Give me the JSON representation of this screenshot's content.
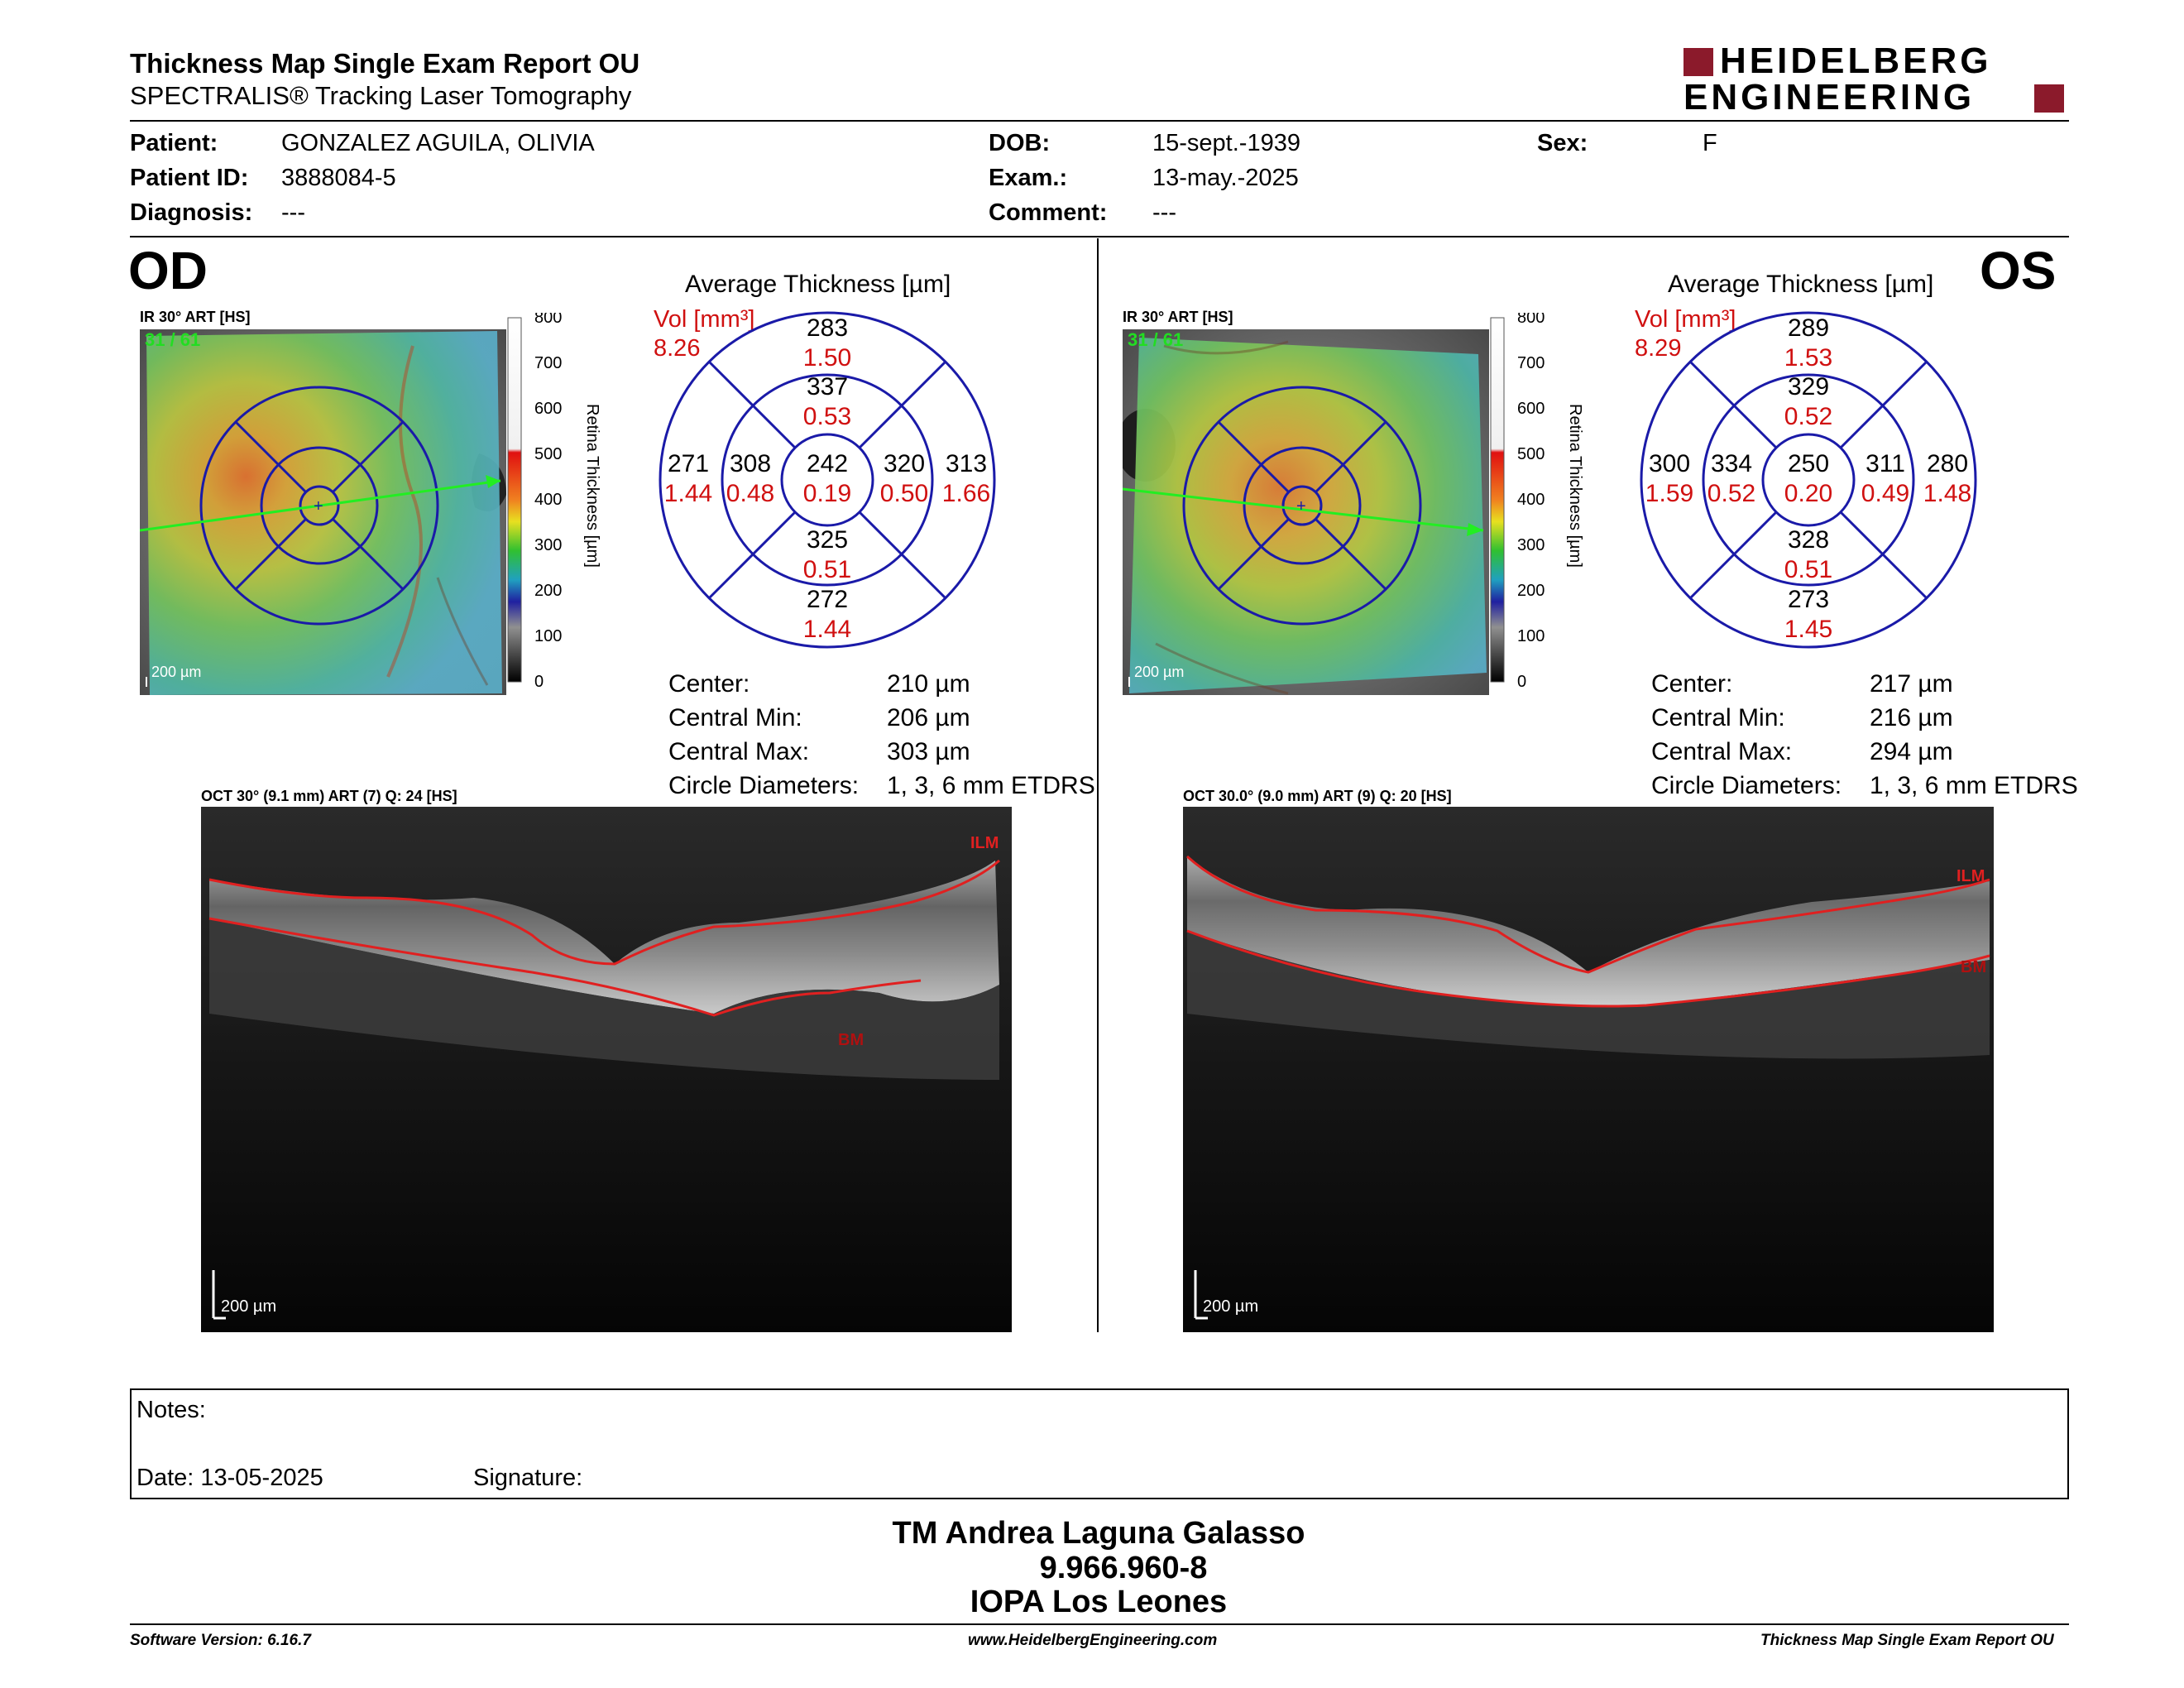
{
  "header": {
    "title": "Thickness Map Single Exam Report OU",
    "subtitle": "SPECTRALIS® Tracking Laser Tomography",
    "logo_line1": "HEIDELBERG",
    "logo_line2": "ENGINEERING"
  },
  "patient": {
    "patient_label": "Patient:",
    "patient_value": "GONZALEZ AGUILA, OLIVIA",
    "id_label": "Patient ID:",
    "id_value": "3888084-5",
    "diagnosis_label": "Diagnosis:",
    "diagnosis_value": "---",
    "dob_label": "DOB:",
    "dob_value": "15-sept.-1939",
    "exam_label": "Exam.:",
    "exam_value": "13-may.-2025",
    "comment_label": "Comment:",
    "comment_value": "---",
    "sex_label": "Sex:",
    "sex_value": "F"
  },
  "od": {
    "eye": "OD",
    "ir_label": "IR 30° ART [HS]",
    "frames": "31 / 61",
    "scale": "200 µm",
    "colorbar_ticks": [
      "800",
      "700",
      "600",
      "500",
      "400",
      "300",
      "200",
      "100",
      "0"
    ],
    "colorbar_label": "Retina Thickness [µm]",
    "avg_title": "Average Thickness [µm]",
    "vol_label": "Vol [mm³]",
    "vol_value": "8.26",
    "sectors": {
      "outer_sup": [
        "283",
        "1.50"
      ],
      "inner_sup": [
        "337",
        "0.53"
      ],
      "outer_temp": [
        "271",
        "1.44"
      ],
      "inner_temp": [
        "308",
        "0.48"
      ],
      "center": [
        "242",
        "0.19"
      ],
      "inner_nas": [
        "320",
        "0.50"
      ],
      "outer_nas": [
        "313",
        "1.66"
      ],
      "inner_inf": [
        "325",
        "0.51"
      ],
      "outer_inf": [
        "272",
        "1.44"
      ]
    },
    "stats": [
      {
        "label": "Center:",
        "value": "210 µm"
      },
      {
        "label": "Central Min:",
        "value": "206 µm"
      },
      {
        "label": "Central Max:",
        "value": "303 µm"
      },
      {
        "label": "Circle Diameters:",
        "value": "1, 3, 6 mm ETDRS"
      }
    ],
    "oct_label": "OCT 30° (9.1 mm) ART (7) Q: 24 [HS]",
    "ilm": "ILM",
    "bm": "BM",
    "oct_scale": "200 µm"
  },
  "os": {
    "eye": "OS",
    "ir_label": "IR 30° ART [HS]",
    "frames": "31 / 61",
    "scale": "200 µm",
    "colorbar_ticks": [
      "800",
      "700",
      "600",
      "500",
      "400",
      "300",
      "200",
      "100",
      "0"
    ],
    "colorbar_label": "Retina Thickness [µm]",
    "avg_title": "Average Thickness [µm]",
    "vol_label": "Vol [mm³]",
    "vol_value": "8.29",
    "sectors": {
      "outer_sup": [
        "289",
        "1.53"
      ],
      "inner_sup": [
        "329",
        "0.52"
      ],
      "outer_temp": [
        "300",
        "1.59"
      ],
      "inner_temp": [
        "334",
        "0.52"
      ],
      "center": [
        "250",
        "0.20"
      ],
      "inner_nas": [
        "311",
        "0.49"
      ],
      "outer_nas": [
        "280",
        "1.48"
      ],
      "inner_inf": [
        "328",
        "0.51"
      ],
      "outer_inf": [
        "273",
        "1.45"
      ]
    },
    "stats": [
      {
        "label": "Center:",
        "value": "217 µm"
      },
      {
        "label": "Central Min:",
        "value": "216 µm"
      },
      {
        "label": "Central Max:",
        "value": "294 µm"
      },
      {
        "label": "Circle Diameters:",
        "value": "1, 3, 6 mm ETDRS"
      }
    ],
    "oct_label": "OCT 30.0° (9.0 mm) ART (9) Q: 20 [HS]",
    "ilm": "ILM",
    "bm": "BM",
    "oct_scale": "200 µm"
  },
  "notes": {
    "notes_label": "Notes:",
    "date_label": "Date: 13-05-2025",
    "signature_label": "Signature:"
  },
  "signatory": {
    "name": "TM Andrea Laguna Galasso",
    "rut": "9.966.960-8",
    "institution": "IOPA Los Leones"
  },
  "footer": {
    "version": "Software Version: 6.16.7",
    "website": "www.HeidelbergEngineering.com",
    "report": "Thickness Map Single Exam Report OU"
  }
}
